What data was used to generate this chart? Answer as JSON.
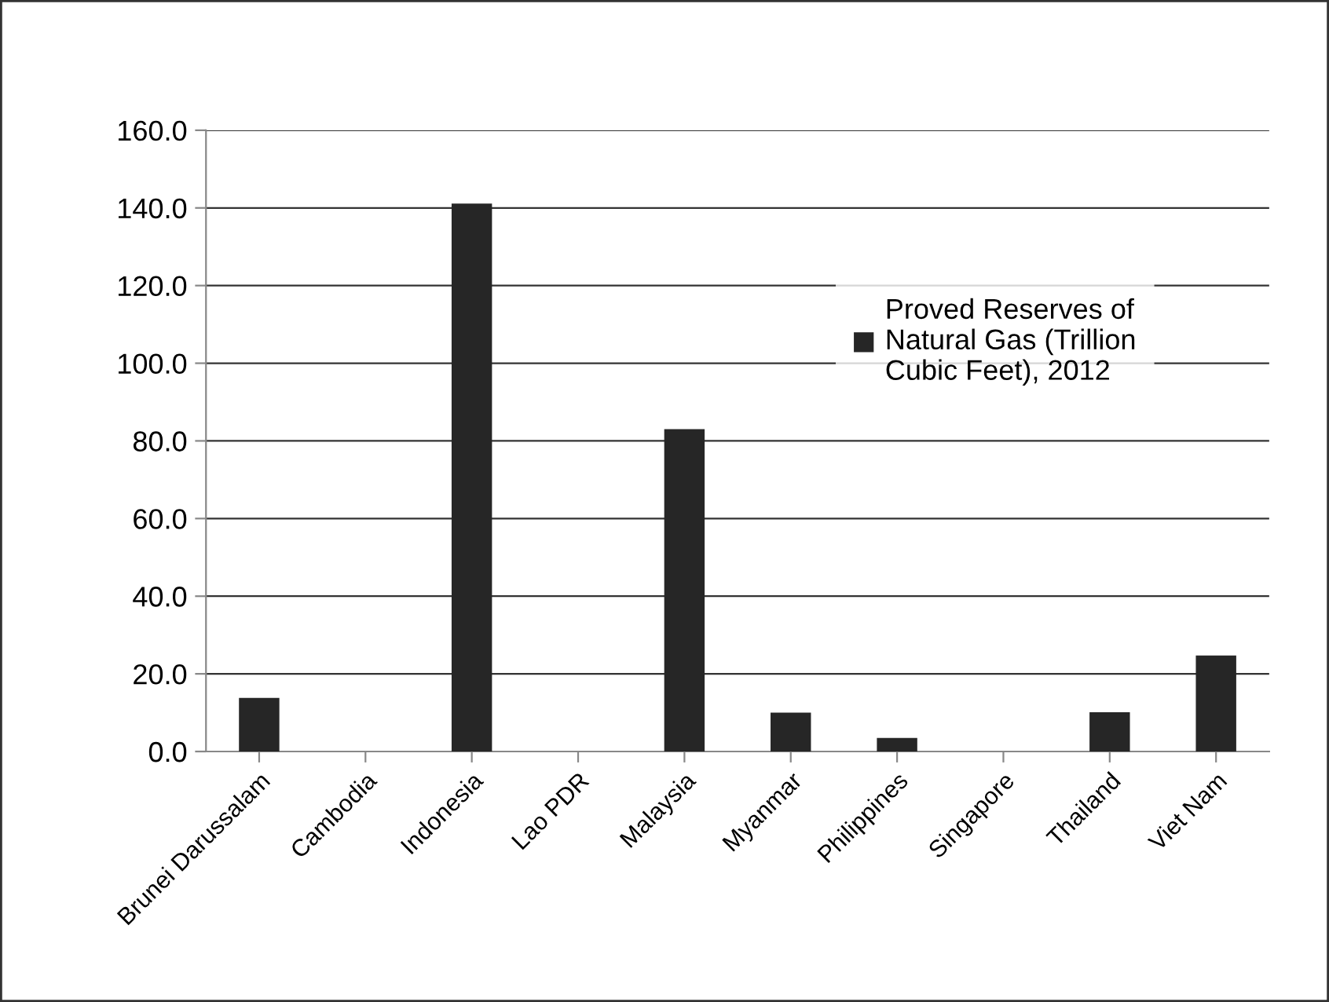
{
  "chart_data": {
    "type": "bar",
    "categories": [
      "Brunei Darussalam",
      "Cambodia",
      "Indonesia",
      "Lao PDR",
      "Malaysia",
      "Myanmar",
      "Philippines",
      "Singapore",
      "Thailand",
      "Viet Nam"
    ],
    "series": [
      {
        "name": "Proved Reserves of\nNatural Gas (Trillion\nCubic Feet), 2012",
        "color": "#262626",
        "values": [
          13.8,
          0,
          141.1,
          0,
          83.0,
          10.0,
          3.5,
          0,
          10.1,
          24.7
        ]
      }
    ],
    "ylim": [
      0,
      160
    ],
    "yticks": [
      {
        "value": 0,
        "label": "0.0"
      },
      {
        "value": 20,
        "label": "20.0"
      },
      {
        "value": 40,
        "label": "40.0"
      },
      {
        "value": 60,
        "label": "60.0"
      },
      {
        "value": 80,
        "label": "80.0"
      },
      {
        "value": 100,
        "label": "100.0"
      },
      {
        "value": 120,
        "label": "120.0"
      },
      {
        "value": 140,
        "label": "140.0"
      },
      {
        "value": 160,
        "label": "160.0"
      }
    ],
    "grid": "y",
    "legend": "top right"
  }
}
